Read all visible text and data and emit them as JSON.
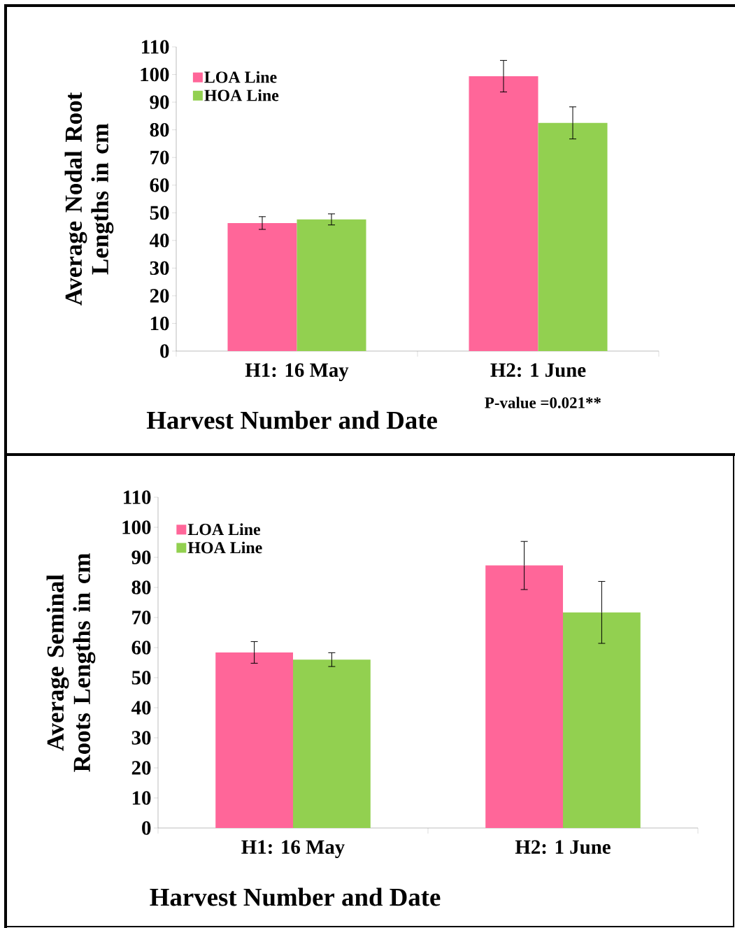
{
  "chart_data": [
    {
      "type": "bar",
      "categories": [
        "H1: 16 May",
        "H2: 1 June"
      ],
      "xlabel": "Harvest Number and Date",
      "ylabel": "Average Nodal Root Lengths in cm",
      "ylim": [
        0,
        110
      ],
      "yticks": [
        0,
        10,
        20,
        30,
        40,
        50,
        60,
        70,
        80,
        90,
        100,
        110
      ],
      "legend": "top left",
      "annotations": [
        "P-value =0.021**"
      ],
      "series": [
        {
          "name": "LOA Line",
          "color": "#ff6699",
          "values": [
            46.3,
            99.4
          ],
          "errors": [
            2.3,
            5.7
          ]
        },
        {
          "name": "HOA Line",
          "color": "#92d050",
          "values": [
            47.6,
            82.5
          ],
          "errors": [
            2,
            5.8
          ]
        }
      ]
    },
    {
      "type": "bar",
      "categories": [
        "H1: 16 May",
        "H2: 1 June"
      ],
      "xlabel": "Harvest Number and Date",
      "ylabel": "Average Seminal Roots Lengths in cm",
      "ylim": [
        0,
        110
      ],
      "yticks": [
        0,
        10,
        20,
        30,
        40,
        50,
        60,
        70,
        80,
        90,
        100,
        110
      ],
      "legend": "top left",
      "series": [
        {
          "name": "LOA Line",
          "color": "#ff6699",
          "values": [
            58.4,
            87.3
          ],
          "errors": [
            3.6,
            8
          ]
        },
        {
          "name": "HOA Line",
          "color": "#92d050",
          "values": [
            56.0,
            71.7
          ],
          "errors": [
            2.3,
            10.3
          ]
        }
      ]
    }
  ]
}
